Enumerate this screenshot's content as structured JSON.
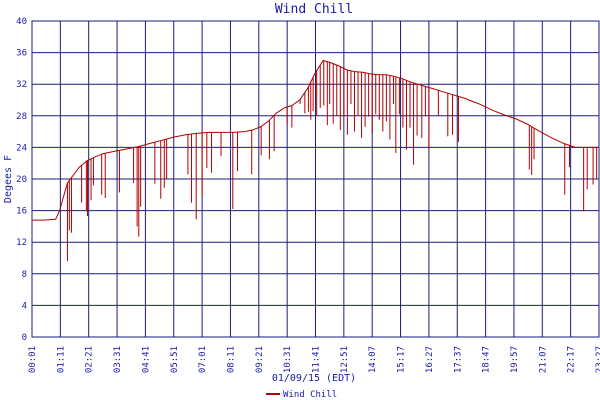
{
  "chart_data": {
    "type": "line",
    "title": "Wind Chill",
    "xlabel": "01/09/15 (EDT)",
    "ylabel": "Degees F",
    "ylim": [
      0,
      40
    ],
    "y_ticks": [
      "0",
      "4",
      "8",
      "12",
      "16",
      "20",
      "24",
      "28",
      "32",
      "36",
      "40"
    ],
    "x_ticks": [
      "00:01",
      "01:11",
      "02:21",
      "03:31",
      "04:41",
      "05:51",
      "07:01",
      "08:11",
      "09:21",
      "10:31",
      "11:41",
      "12:51",
      "14:07",
      "15:17",
      "16:27",
      "17:37",
      "18:47",
      "19:57",
      "21:07",
      "22:17",
      "23:27"
    ],
    "grid": true,
    "legend": "bottom-left",
    "series": [
      {
        "name": "Wind Chill",
        "color": "#b00000",
        "x_hours": [
          0.0,
          0.5,
          1.0,
          1.17,
          1.5,
          2.0,
          2.33,
          2.67,
          3.0,
          3.5,
          4.0,
          4.5,
          5.0,
          5.5,
          6.0,
          6.5,
          7.0,
          7.5,
          8.0,
          8.5,
          9.0,
          9.33,
          9.67,
          10.0,
          10.33,
          10.67,
          11.0,
          11.33,
          11.67,
          12.0,
          12.33,
          12.67,
          13.0,
          13.33,
          13.67,
          14.0,
          14.33,
          14.67,
          15.0,
          15.33,
          15.67,
          16.0,
          16.33,
          16.67,
          17.0,
          17.33,
          17.67,
          18.0,
          18.33,
          18.67,
          19.0,
          19.5,
          20.0,
          20.5,
          21.0,
          21.5,
          22.0,
          22.5,
          23.0,
          23.5,
          23.95
        ],
        "values": [
          14.8,
          14.8,
          14.9,
          16.0,
          19.5,
          21.5,
          22.3,
          22.8,
          23.2,
          23.5,
          23.8,
          24.1,
          24.5,
          24.9,
          25.3,
          25.6,
          25.8,
          25.9,
          25.9,
          25.9,
          26.0,
          26.2,
          26.6,
          27.3,
          28.3,
          29.0,
          29.3,
          30.0,
          31.5,
          33.5,
          35.0,
          34.7,
          34.3,
          33.8,
          33.6,
          33.5,
          33.3,
          33.2,
          33.2,
          33.0,
          32.7,
          32.3,
          32.0,
          31.7,
          31.4,
          31.1,
          30.8,
          30.5,
          30.2,
          29.8,
          29.4,
          28.7,
          28.1,
          27.6,
          26.9,
          26.0,
          25.2,
          24.5,
          24.0,
          24.0,
          24.0
        ],
        "dips": [
          [
            1.5,
            9.6
          ],
          [
            1.58,
            13.5
          ],
          [
            1.67,
            13.2
          ],
          [
            2.1,
            17.0
          ],
          [
            2.3,
            16.0
          ],
          [
            2.35,
            15.3
          ],
          [
            2.5,
            17.3
          ],
          [
            2.6,
            19.2
          ],
          [
            2.95,
            18.0
          ],
          [
            3.1,
            17.6
          ],
          [
            3.7,
            18.3
          ],
          [
            4.3,
            19.5
          ],
          [
            4.45,
            14.0
          ],
          [
            4.52,
            12.7
          ],
          [
            4.6,
            16.5
          ],
          [
            5.2,
            19.4
          ],
          [
            5.45,
            17.5
          ],
          [
            5.6,
            18.9
          ],
          [
            5.7,
            20.0
          ],
          [
            6.6,
            20.6
          ],
          [
            6.75,
            17.0
          ],
          [
            6.95,
            14.9
          ],
          [
            7.2,
            17.8
          ],
          [
            7.4,
            21.4
          ],
          [
            7.6,
            20.8
          ],
          [
            8.0,
            22.9
          ],
          [
            8.5,
            16.2
          ],
          [
            8.7,
            21.0
          ],
          [
            9.3,
            20.6
          ],
          [
            9.7,
            23.0
          ],
          [
            10.05,
            22.5
          ],
          [
            10.25,
            23.5
          ],
          [
            10.8,
            27.0
          ],
          [
            11.0,
            26.5
          ],
          [
            11.35,
            29.5
          ],
          [
            11.55,
            28.3
          ],
          [
            11.7,
            28.5
          ],
          [
            11.8,
            27.5
          ],
          [
            11.9,
            28.6
          ],
          [
            12.05,
            28.0
          ],
          [
            12.2,
            29.0
          ],
          [
            12.35,
            29.3
          ],
          [
            12.5,
            26.8
          ],
          [
            12.6,
            29.5
          ],
          [
            12.75,
            27.0
          ],
          [
            12.9,
            28.0
          ],
          [
            13.05,
            26.2
          ],
          [
            13.2,
            27.9
          ],
          [
            13.35,
            25.6
          ],
          [
            13.5,
            29.5
          ],
          [
            13.65,
            26.0
          ],
          [
            13.8,
            28.0
          ],
          [
            13.95,
            25.2
          ],
          [
            14.1,
            26.6
          ],
          [
            14.25,
            27.9
          ],
          [
            14.4,
            25.8
          ],
          [
            14.55,
            28.2
          ],
          [
            14.7,
            27.5
          ],
          [
            14.85,
            26.0
          ],
          [
            15.0,
            27.3
          ],
          [
            15.15,
            25.0
          ],
          [
            15.3,
            29.5
          ],
          [
            15.4,
            23.3
          ],
          [
            15.55,
            28.2
          ],
          [
            15.7,
            26.5
          ],
          [
            15.85,
            23.7
          ],
          [
            16.0,
            26.5
          ],
          [
            16.15,
            21.8
          ],
          [
            16.3,
            25.5
          ],
          [
            16.5,
            25.2
          ],
          [
            16.65,
            28.0
          ],
          [
            16.8,
            23.6
          ],
          [
            17.2,
            28.0
          ],
          [
            17.6,
            25.4
          ],
          [
            17.8,
            25.6
          ],
          [
            18.05,
            24.7
          ],
          [
            21.05,
            21.2
          ],
          [
            21.15,
            20.5
          ],
          [
            21.25,
            22.5
          ],
          [
            22.55,
            18.0
          ],
          [
            22.75,
            21.5
          ],
          [
            23.35,
            15.9
          ],
          [
            23.5,
            18.7
          ],
          [
            23.75,
            19.3
          ],
          [
            23.9,
            20.0
          ]
        ]
      }
    ]
  }
}
